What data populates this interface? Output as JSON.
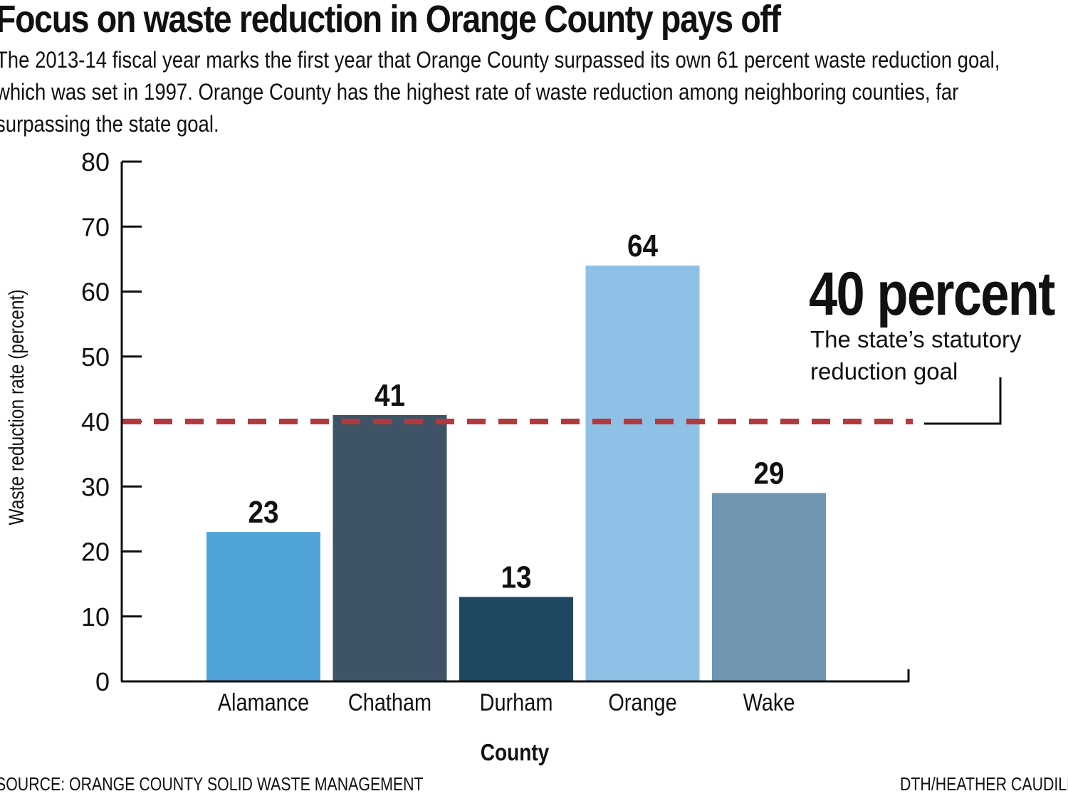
{
  "title": "Focus on waste reduction in Orange County pays off",
  "subtitle": "The 2013-14 fiscal year marks the first year that Orange County surpassed its own 61 percent waste reduction goal, which was set in 1997. Orange County has the highest rate of waste reduction among neighboring counties, far surpassing the state goal.",
  "source": "SOURCE: ORANGE COUNTY SOLID WASTE MANAGEMENT",
  "credit": "DTH/HEATHER CAUDILL",
  "callout": {
    "value": "40 percent",
    "text": "The state’s statutory reduction goal"
  },
  "chart_data": {
    "type": "bar",
    "categories": [
      "Alamance",
      "Chatham",
      "Durham",
      "Orange",
      "Wake"
    ],
    "values": [
      23,
      41,
      13,
      64,
      29
    ],
    "value_labels": [
      "23",
      "41",
      "13",
      "64",
      "29"
    ],
    "colors": [
      "#4fa3d9",
      "#3e5466",
      "#1e4761",
      "#8fc0e6",
      "#6e96b0"
    ],
    "xlabel": "County",
    "ylabel": "Waste reduction rate (percent)",
    "ylim": [
      0,
      80
    ],
    "yticks": [
      "0",
      "10",
      "20",
      "30",
      "40",
      "50",
      "60",
      "70",
      "80"
    ],
    "reference_line": {
      "value": 40,
      "color": "#b03a3e",
      "style": "dashed"
    },
    "grid": false,
    "legend": "none"
  }
}
